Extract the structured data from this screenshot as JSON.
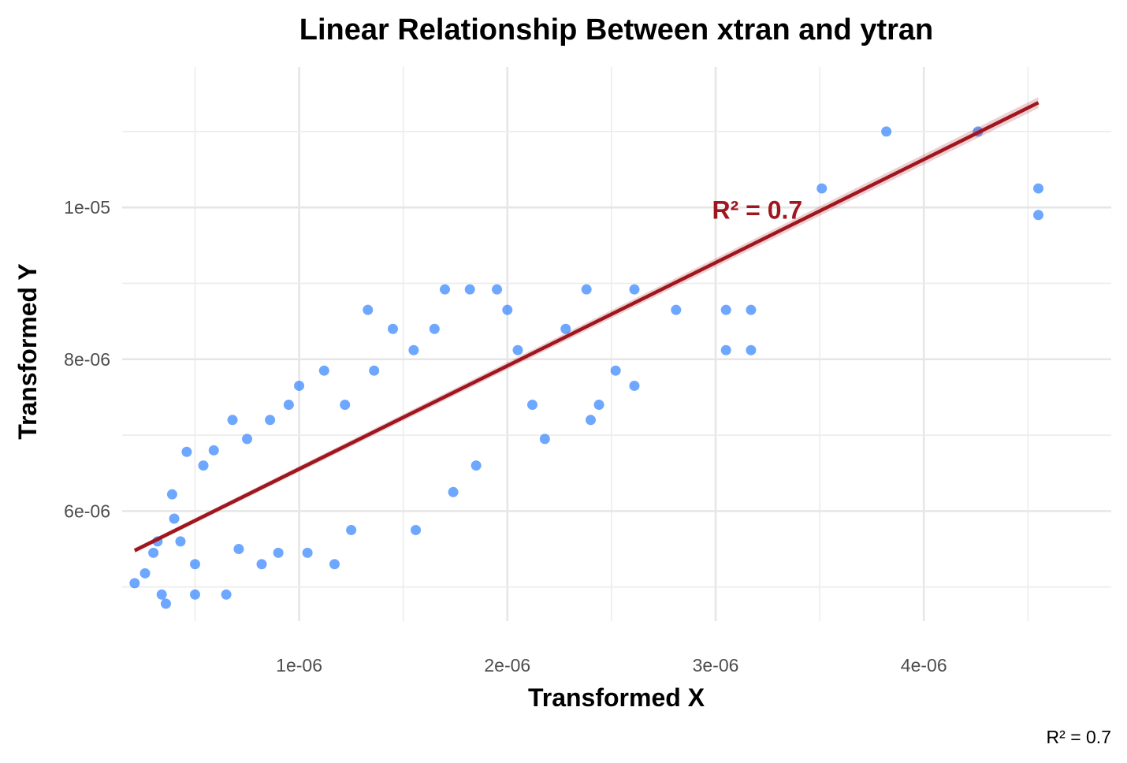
{
  "chart_data": {
    "type": "scatter",
    "title": "Linear Relationship Between xtran and ytran",
    "xlabel": "Transformed X",
    "ylabel": "Transformed Y",
    "caption": "R² = 0.7",
    "xlim": [
      1.5e-07,
      4.9e-06
    ],
    "ylim": [
      4.55e-06,
      1.185e-05
    ],
    "x_ticks": [
      1e-06,
      2e-06,
      3e-06,
      4e-06
    ],
    "x_tick_labels": [
      "1e-06",
      "2e-06",
      "3e-06",
      "4e-06"
    ],
    "y_ticks": [
      6e-06,
      8e-06,
      1e-05
    ],
    "y_tick_labels": [
      "6e-06",
      "8e-06",
      "1e-05"
    ],
    "grid": true,
    "point_color": "#1f78ff",
    "fit_color": "#a0161f",
    "fit_line": {
      "x": [
        2.1e-07,
        4.55e-06
      ],
      "y": [
        5.48e-06,
        1.138e-05
      ]
    },
    "annotation": {
      "text": "R² = 0.7",
      "x": 3.2e-06,
      "y": 9.85e-06
    },
    "series": [
      {
        "x": [
          2.1e-07,
          2.6e-07,
          3e-07,
          3.2e-07,
          3.4e-07,
          3.6e-07,
          3.9e-07,
          4e-07,
          4.3e-07,
          4.6e-07,
          5e-07,
          5e-07,
          5.4e-07,
          5.9e-07,
          6.5e-07,
          6.8e-07,
          7.1e-07,
          7.5e-07,
          8.2e-07,
          8.6e-07,
          9e-07,
          9.5e-07,
          1e-06,
          1.04e-06,
          1.12e-06,
          1.17e-06,
          1.22e-06,
          1.25e-06,
          1.33e-06,
          1.36e-06,
          1.45e-06,
          1.55e-06,
          1.56e-06,
          1.65e-06,
          1.7e-06,
          1.74e-06,
          1.82e-06,
          1.85e-06,
          1.95e-06,
          2e-06,
          2.05e-06,
          2.12e-06,
          2.18e-06,
          2.28e-06,
          2.38e-06,
          2.4e-06,
          2.44e-06,
          2.52e-06,
          2.61e-06,
          2.61e-06,
          2.81e-06,
          3.05e-06,
          3.05e-06,
          3.17e-06,
          3.17e-06,
          3.51e-06,
          3.82e-06,
          4.26e-06,
          4.55e-06,
          4.55e-06
        ],
        "y": [
          5.05e-06,
          5.18e-06,
          5.45e-06,
          5.6e-06,
          4.9e-06,
          4.78e-06,
          6.22e-06,
          5.9e-06,
          5.6e-06,
          6.78e-06,
          5.3e-06,
          4.9e-06,
          6.6e-06,
          6.8e-06,
          4.9e-06,
          7.2e-06,
          5.5e-06,
          6.95e-06,
          5.3e-06,
          7.2e-06,
          5.45e-06,
          7.4e-06,
          7.65e-06,
          5.45e-06,
          7.85e-06,
          5.3e-06,
          7.4e-06,
          5.75e-06,
          8.65e-06,
          7.85e-06,
          8.4e-06,
          8.12e-06,
          5.75e-06,
          8.4e-06,
          8.92e-06,
          6.25e-06,
          8.92e-06,
          6.6e-06,
          8.92e-06,
          8.65e-06,
          8.12e-06,
          7.4e-06,
          6.95e-06,
          8.4e-06,
          8.92e-06,
          7.2e-06,
          7.4e-06,
          7.85e-06,
          8.92e-06,
          7.65e-06,
          8.65e-06,
          8.65e-06,
          8.12e-06,
          8.65e-06,
          8.12e-06,
          1.025e-05,
          1.1e-05,
          1.1e-05,
          1.025e-05,
          9.9e-06
        ]
      }
    ]
  }
}
